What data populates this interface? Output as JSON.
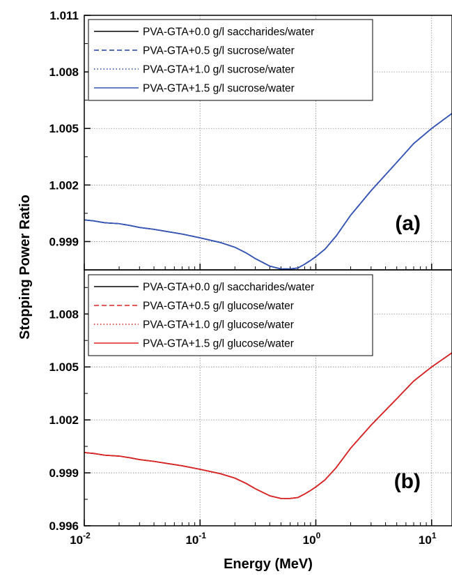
{
  "chart_data": {
    "type": "line",
    "xlabel": "Energy (MeV)",
    "ylabel": "Stopping Power Ratio",
    "x_scale": "log",
    "xlim": [
      0.01,
      15
    ],
    "x_ticks": [
      {
        "value": 0.01,
        "base": "10",
        "exp": "-2"
      },
      {
        "value": 0.1,
        "base": "10",
        "exp": "-1"
      },
      {
        "value": 1,
        "base": "10",
        "exp": "0"
      },
      {
        "value": 10,
        "base": "10",
        "exp": "1"
      }
    ],
    "grid": true,
    "legend_position": "top-left",
    "panels": [
      {
        "label": "(a)",
        "ylim": [
          0.9975,
          1.011
        ],
        "y_ticks": [
          "0.999",
          "1.002",
          "1.005",
          "1.008",
          "1.011"
        ],
        "series": [
          {
            "name": "PVA-GTA+0.0 g/l saccharides/water",
            "color": "#000000",
            "dash": "solid",
            "x": [
              0.01,
              0.012,
              0.015,
              0.02,
              0.025,
              0.03,
              0.04,
              0.05,
              0.07,
              0.1,
              0.15,
              0.2,
              0.25,
              0.3,
              0.4,
              0.5,
              0.6,
              0.7,
              0.8,
              0.9,
              1.0,
              1.2,
              1.5,
              2,
              3,
              5,
              7,
              10,
              15
            ],
            "y": [
              1.00015,
              1.0001,
              1.0,
              0.99995,
              0.99985,
              0.99975,
              0.99965,
              0.99955,
              0.9994,
              0.9992,
              0.99895,
              0.9987,
              0.9984,
              0.9981,
              0.9977,
              0.99755,
              0.99755,
              0.9976,
              0.9978,
              0.998,
              0.9982,
              0.9986,
              0.9993,
              1.0004,
              1.0017,
              1.0032,
              1.0042,
              1.005,
              1.0058
            ]
          },
          {
            "name": "PVA-GTA+0.5 g/l sucrose/water",
            "color": "#1f3fa0",
            "dash": "dashed",
            "x": [
              0.01,
              0.012,
              0.015,
              0.02,
              0.025,
              0.03,
              0.04,
              0.05,
              0.07,
              0.1,
              0.15,
              0.2,
              0.25,
              0.3,
              0.4,
              0.5,
              0.6,
              0.7,
              0.8,
              0.9,
              1.0,
              1.2,
              1.5,
              2,
              3,
              5,
              7,
              10,
              15
            ],
            "y": [
              1.00015,
              1.0001,
              1.0,
              0.99995,
              0.99985,
              0.99975,
              0.99965,
              0.99955,
              0.9994,
              0.9992,
              0.99895,
              0.9987,
              0.9984,
              0.9981,
              0.9977,
              0.99755,
              0.99755,
              0.9976,
              0.9978,
              0.998,
              0.9982,
              0.9986,
              0.9993,
              1.0004,
              1.0017,
              1.0032,
              1.0042,
              1.005,
              1.0058
            ]
          },
          {
            "name": "PVA-GTA+1.0 g/l sucrose/water",
            "color": "#1f3fa0",
            "dash": "dotted",
            "x": [
              0.01,
              0.012,
              0.015,
              0.02,
              0.025,
              0.03,
              0.04,
              0.05,
              0.07,
              0.1,
              0.15,
              0.2,
              0.25,
              0.3,
              0.4,
              0.5,
              0.6,
              0.7,
              0.8,
              0.9,
              1.0,
              1.2,
              1.5,
              2,
              3,
              5,
              7,
              10,
              15
            ],
            "y": [
              1.00015,
              1.0001,
              1.0,
              0.99995,
              0.99985,
              0.99975,
              0.99965,
              0.99955,
              0.9994,
              0.9992,
              0.99895,
              0.9987,
              0.9984,
              0.9981,
              0.9977,
              0.99755,
              0.99755,
              0.9976,
              0.9978,
              0.998,
              0.9982,
              0.9986,
              0.9993,
              1.0004,
              1.0017,
              1.0032,
              1.0042,
              1.005,
              1.0058
            ]
          },
          {
            "name": "PVA-GTA+1.5 g/l sucrose/water",
            "color": "#3355bb",
            "dash": "solid",
            "x": [
              0.01,
              0.012,
              0.015,
              0.02,
              0.025,
              0.03,
              0.04,
              0.05,
              0.07,
              0.1,
              0.15,
              0.2,
              0.25,
              0.3,
              0.4,
              0.5,
              0.6,
              0.7,
              0.8,
              0.9,
              1.0,
              1.2,
              1.5,
              2,
              3,
              5,
              7,
              10,
              15
            ],
            "y": [
              1.00015,
              1.0001,
              1.0,
              0.99995,
              0.99985,
              0.99975,
              0.99965,
              0.99955,
              0.9994,
              0.9992,
              0.99895,
              0.9987,
              0.9984,
              0.9981,
              0.9977,
              0.99755,
              0.99755,
              0.9976,
              0.9978,
              0.998,
              0.9982,
              0.9986,
              0.9993,
              1.0004,
              1.0017,
              1.0032,
              1.0042,
              1.005,
              1.0058
            ]
          }
        ]
      },
      {
        "label": "(b)",
        "ylim": [
          0.996,
          1.0105
        ],
        "y_ticks": [
          "0.996",
          "0.999",
          "1.002",
          "1.005",
          "1.008"
        ],
        "series": [
          {
            "name": "PVA-GTA+0.0 g/l saccharides/water",
            "color": "#000000",
            "dash": "solid",
            "x": [
              0.01,
              0.012,
              0.015,
              0.02,
              0.025,
              0.03,
              0.04,
              0.05,
              0.07,
              0.1,
              0.15,
              0.2,
              0.25,
              0.3,
              0.4,
              0.5,
              0.6,
              0.7,
              0.8,
              0.9,
              1.0,
              1.2,
              1.5,
              2,
              3,
              5,
              7,
              10,
              15
            ],
            "y": [
              1.00015,
              1.0001,
              1.0,
              0.99995,
              0.99985,
              0.99975,
              0.99965,
              0.99955,
              0.9994,
              0.9992,
              0.99895,
              0.9987,
              0.9984,
              0.9981,
              0.9977,
              0.99755,
              0.99755,
              0.9976,
              0.9978,
              0.998,
              0.9982,
              0.9986,
              0.9993,
              1.0004,
              1.0017,
              1.0032,
              1.0042,
              1.005,
              1.0058
            ]
          },
          {
            "name": "PVA-GTA+0.5 g/l glucose/water",
            "color": "#e02020",
            "dash": "dashed",
            "x": [
              0.01,
              0.012,
              0.015,
              0.02,
              0.025,
              0.03,
              0.04,
              0.05,
              0.07,
              0.1,
              0.15,
              0.2,
              0.25,
              0.3,
              0.4,
              0.5,
              0.6,
              0.7,
              0.8,
              0.9,
              1.0,
              1.2,
              1.5,
              2,
              3,
              5,
              7,
              10,
              15
            ],
            "y": [
              1.00015,
              1.0001,
              1.0,
              0.99995,
              0.99985,
              0.99975,
              0.99965,
              0.99955,
              0.9994,
              0.9992,
              0.99895,
              0.9987,
              0.9984,
              0.9981,
              0.9977,
              0.99755,
              0.99755,
              0.9976,
              0.9978,
              0.998,
              0.9982,
              0.9986,
              0.9993,
              1.0004,
              1.0017,
              1.0032,
              1.0042,
              1.005,
              1.0058
            ]
          },
          {
            "name": "PVA-GTA+1.0 g/l glucose/water",
            "color": "#e02020",
            "dash": "dotted",
            "x": [
              0.01,
              0.012,
              0.015,
              0.02,
              0.025,
              0.03,
              0.04,
              0.05,
              0.07,
              0.1,
              0.15,
              0.2,
              0.25,
              0.3,
              0.4,
              0.5,
              0.6,
              0.7,
              0.8,
              0.9,
              1.0,
              1.2,
              1.5,
              2,
              3,
              5,
              7,
              10,
              15
            ],
            "y": [
              1.00015,
              1.0001,
              1.0,
              0.99995,
              0.99985,
              0.99975,
              0.99965,
              0.99955,
              0.9994,
              0.9992,
              0.99895,
              0.9987,
              0.9984,
              0.9981,
              0.9977,
              0.99755,
              0.99755,
              0.9976,
              0.9978,
              0.998,
              0.9982,
              0.9986,
              0.9993,
              1.0004,
              1.0017,
              1.0032,
              1.0042,
              1.005,
              1.0058
            ]
          },
          {
            "name": "PVA-GTA+1.5 g/l glucose/water",
            "color": "#e02020",
            "dash": "solid",
            "x": [
              0.01,
              0.012,
              0.015,
              0.02,
              0.025,
              0.03,
              0.04,
              0.05,
              0.07,
              0.1,
              0.15,
              0.2,
              0.25,
              0.3,
              0.4,
              0.5,
              0.6,
              0.7,
              0.8,
              0.9,
              1.0,
              1.2,
              1.5,
              2,
              3,
              5,
              7,
              10,
              15
            ],
            "y": [
              1.00015,
              1.0001,
              1.0,
              0.99995,
              0.99985,
              0.99975,
              0.99965,
              0.99955,
              0.9994,
              0.9992,
              0.99895,
              0.9987,
              0.9984,
              0.9981,
              0.9977,
              0.99755,
              0.99755,
              0.9976,
              0.9978,
              0.998,
              0.9982,
              0.9986,
              0.9993,
              1.0004,
              1.0017,
              1.0032,
              1.0042,
              1.005,
              1.0058
            ]
          }
        ]
      }
    ]
  }
}
